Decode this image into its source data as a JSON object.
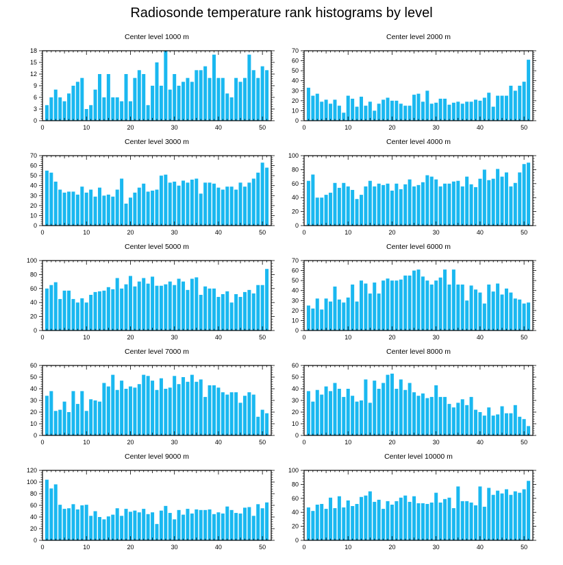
{
  "title": "Radiosonde temperature rank histograms by level",
  "colors": {
    "bar": "#1ab8f0",
    "axis": "#000000",
    "background": "#ffffff"
  },
  "chart_data": [
    {
      "type": "bar",
      "title": "Center level 1000 m",
      "xlim": [
        0,
        52
      ],
      "ylim": [
        0,
        18
      ],
      "xticks": [
        0,
        10,
        20,
        30,
        40,
        50
      ],
      "yticks": [
        0,
        3,
        6,
        9,
        12,
        15,
        18
      ],
      "x": [
        1,
        2,
        3,
        4,
        5,
        6,
        7,
        8,
        9,
        10,
        11,
        12,
        13,
        14,
        15,
        16,
        17,
        18,
        19,
        20,
        21,
        22,
        23,
        24,
        25,
        26,
        27,
        28,
        29,
        30,
        31,
        32,
        33,
        34,
        35,
        36,
        37,
        38,
        39,
        40,
        41,
        42,
        43,
        44,
        45,
        46,
        47,
        48,
        49,
        50,
        51
      ],
      "values": [
        4,
        6,
        8,
        6,
        5,
        7,
        9,
        10,
        11,
        3,
        4,
        8,
        12,
        6,
        12,
        6,
        6,
        5,
        12,
        5,
        11,
        13,
        12,
        4,
        9,
        15,
        9,
        18,
        8,
        12,
        9,
        10,
        11,
        10,
        13,
        13,
        14,
        11,
        17,
        11,
        11,
        7,
        6,
        11,
        10,
        11,
        17,
        13,
        11,
        14,
        13
      ]
    },
    {
      "type": "bar",
      "title": "Center level 2000 m",
      "xlim": [
        0,
        52
      ],
      "ylim": [
        0,
        70
      ],
      "xticks": [
        0,
        10,
        20,
        30,
        40,
        50
      ],
      "yticks": [
        0,
        10,
        20,
        30,
        40,
        50,
        60,
        70
      ],
      "x": [
        1,
        2,
        3,
        4,
        5,
        6,
        7,
        8,
        9,
        10,
        11,
        12,
        13,
        14,
        15,
        16,
        17,
        18,
        19,
        20,
        21,
        22,
        23,
        24,
        25,
        26,
        27,
        28,
        29,
        30,
        31,
        32,
        33,
        34,
        35,
        36,
        37,
        38,
        39,
        40,
        41,
        42,
        43,
        44,
        45,
        46,
        47,
        48,
        49,
        50,
        51
      ],
      "values": [
        33,
        25,
        27,
        19,
        21,
        17,
        21,
        15,
        8,
        25,
        22,
        14,
        24,
        15,
        19,
        10,
        17,
        21,
        23,
        20,
        20,
        17,
        15,
        15,
        26,
        27,
        19,
        30,
        17,
        18,
        22,
        22,
        16,
        18,
        19,
        17,
        19,
        19,
        21,
        20,
        23,
        28,
        14,
        25,
        25,
        25,
        35,
        30,
        35,
        39,
        61
      ]
    },
    {
      "type": "bar",
      "title": "Center level 3000 m",
      "xlim": [
        0,
        52
      ],
      "ylim": [
        0,
        70
      ],
      "xticks": [
        0,
        10,
        20,
        30,
        40,
        50
      ],
      "yticks": [
        0,
        10,
        20,
        30,
        40,
        50,
        60,
        70
      ],
      "x": [
        1,
        2,
        3,
        4,
        5,
        6,
        7,
        8,
        9,
        10,
        11,
        12,
        13,
        14,
        15,
        16,
        17,
        18,
        19,
        20,
        21,
        22,
        23,
        24,
        25,
        26,
        27,
        28,
        29,
        30,
        31,
        32,
        33,
        34,
        35,
        36,
        37,
        38,
        39,
        40,
        41,
        42,
        43,
        44,
        45,
        46,
        47,
        48,
        49,
        50,
        51
      ],
      "values": [
        55,
        53,
        44,
        36,
        33,
        34,
        34,
        31,
        39,
        33,
        36,
        29,
        38,
        30,
        31,
        29,
        36,
        47,
        22,
        28,
        33,
        38,
        42,
        34,
        35,
        36,
        50,
        51,
        43,
        44,
        40,
        45,
        43,
        46,
        47,
        32,
        43,
        43,
        42,
        38,
        36,
        39,
        39,
        36,
        43,
        39,
        43,
        47,
        53,
        63,
        58
      ]
    },
    {
      "type": "bar",
      "title": "Center level 4000 m",
      "xlim": [
        0,
        52
      ],
      "ylim": [
        0,
        100
      ],
      "xticks": [
        0,
        10,
        20,
        30,
        40,
        50
      ],
      "yticks": [
        0,
        20,
        40,
        60,
        80,
        100
      ],
      "x": [
        1,
        2,
        3,
        4,
        5,
        6,
        7,
        8,
        9,
        10,
        11,
        12,
        13,
        14,
        15,
        16,
        17,
        18,
        19,
        20,
        21,
        22,
        23,
        24,
        25,
        26,
        27,
        28,
        29,
        30,
        31,
        32,
        33,
        34,
        35,
        36,
        37,
        38,
        39,
        40,
        41,
        42,
        43,
        44,
        45,
        46,
        47,
        48,
        49,
        50,
        51
      ],
      "values": [
        64,
        73,
        40,
        40,
        44,
        47,
        61,
        54,
        61,
        56,
        51,
        38,
        44,
        56,
        64,
        56,
        60,
        58,
        60,
        50,
        60,
        52,
        59,
        66,
        56,
        58,
        62,
        72,
        70,
        66,
        56,
        60,
        60,
        63,
        64,
        56,
        70,
        59,
        55,
        67,
        80,
        65,
        67,
        81,
        70,
        76,
        56,
        61,
        76,
        88,
        90
      ]
    },
    {
      "type": "bar",
      "title": "Center level 5000 m",
      "xlim": [
        0,
        52
      ],
      "ylim": [
        0,
        100
      ],
      "xticks": [
        0,
        10,
        20,
        30,
        40,
        50
      ],
      "yticks": [
        0,
        20,
        40,
        60,
        80,
        100
      ],
      "x": [
        1,
        2,
        3,
        4,
        5,
        6,
        7,
        8,
        9,
        10,
        11,
        12,
        13,
        14,
        15,
        16,
        17,
        18,
        19,
        20,
        21,
        22,
        23,
        24,
        25,
        26,
        27,
        28,
        29,
        30,
        31,
        32,
        33,
        34,
        35,
        36,
        37,
        38,
        39,
        40,
        41,
        42,
        43,
        44,
        45,
        46,
        47,
        48,
        49,
        50,
        51
      ],
      "values": [
        60,
        65,
        69,
        45,
        57,
        57,
        45,
        40,
        46,
        40,
        51,
        55,
        56,
        57,
        62,
        59,
        75,
        60,
        66,
        78,
        63,
        70,
        75,
        67,
        77,
        64,
        64,
        66,
        70,
        65,
        74,
        70,
        58,
        74,
        76,
        51,
        63,
        60,
        60,
        48,
        52,
        56,
        40,
        52,
        48,
        55,
        58,
        53,
        65,
        65,
        88
      ]
    },
    {
      "type": "bar",
      "title": "Center level 6000 m",
      "xlim": [
        0,
        52
      ],
      "ylim": [
        0,
        70
      ],
      "xticks": [
        0,
        10,
        20,
        30,
        40,
        50
      ],
      "yticks": [
        0,
        10,
        20,
        30,
        40,
        50,
        60,
        70
      ],
      "x": [
        1,
        2,
        3,
        4,
        5,
        6,
        7,
        8,
        9,
        10,
        11,
        12,
        13,
        14,
        15,
        16,
        17,
        18,
        19,
        20,
        21,
        22,
        23,
        24,
        25,
        26,
        27,
        28,
        29,
        30,
        31,
        32,
        33,
        34,
        35,
        36,
        37,
        38,
        39,
        40,
        41,
        42,
        43,
        44,
        45,
        46,
        47,
        48,
        49,
        50,
        51
      ],
      "values": [
        25,
        22,
        32,
        21,
        32,
        29,
        44,
        31,
        28,
        33,
        46,
        29,
        50,
        47,
        37,
        48,
        37,
        50,
        52,
        50,
        50,
        51,
        55,
        55,
        60,
        61,
        54,
        50,
        46,
        50,
        53,
        61,
        46,
        61,
        46,
        46,
        30,
        45,
        41,
        38,
        27,
        46,
        39,
        47,
        36,
        42,
        38,
        32,
        31,
        27,
        28
      ]
    },
    {
      "type": "bar",
      "title": "Center level 7000 m",
      "xlim": [
        0,
        52
      ],
      "ylim": [
        0,
        60
      ],
      "xticks": [
        0,
        10,
        20,
        30,
        40,
        50
      ],
      "yticks": [
        0,
        10,
        20,
        30,
        40,
        50,
        60
      ],
      "x": [
        1,
        2,
        3,
        4,
        5,
        6,
        7,
        8,
        9,
        10,
        11,
        12,
        13,
        14,
        15,
        16,
        17,
        18,
        19,
        20,
        21,
        22,
        23,
        24,
        25,
        26,
        27,
        28,
        29,
        30,
        31,
        32,
        33,
        34,
        35,
        36,
        37,
        38,
        39,
        40,
        41,
        42,
        43,
        44,
        45,
        46,
        47,
        48,
        49,
        50,
        51
      ],
      "values": [
        34,
        38,
        21,
        22,
        29,
        20,
        38,
        27,
        38,
        21,
        31,
        30,
        29,
        45,
        42,
        52,
        39,
        47,
        40,
        42,
        41,
        44,
        52,
        51,
        47,
        39,
        49,
        40,
        41,
        51,
        44,
        50,
        46,
        52,
        46,
        48,
        33,
        43,
        43,
        41,
        37,
        35,
        37,
        37,
        28,
        34,
        37,
        35,
        16,
        22,
        19
      ]
    },
    {
      "type": "bar",
      "title": "Center level 8000 m",
      "xlim": [
        0,
        52
      ],
      "ylim": [
        0,
        60
      ],
      "xticks": [
        0,
        10,
        20,
        30,
        40,
        50
      ],
      "yticks": [
        0,
        10,
        20,
        30,
        40,
        50,
        60
      ],
      "x": [
        1,
        2,
        3,
        4,
        5,
        6,
        7,
        8,
        9,
        10,
        11,
        12,
        13,
        14,
        15,
        16,
        17,
        18,
        19,
        20,
        21,
        22,
        23,
        24,
        25,
        26,
        27,
        28,
        29,
        30,
        31,
        32,
        33,
        34,
        35,
        36,
        37,
        38,
        39,
        40,
        41,
        42,
        43,
        44,
        45,
        46,
        47,
        48,
        49,
        50,
        51
      ],
      "values": [
        38,
        29,
        39,
        35,
        42,
        38,
        45,
        40,
        33,
        40,
        34,
        29,
        30,
        48,
        28,
        47,
        40,
        45,
        52,
        53,
        40,
        48,
        39,
        45,
        37,
        34,
        36,
        32,
        33,
        43,
        33,
        33,
        27,
        24,
        28,
        31,
        26,
        33,
        22,
        20,
        17,
        24,
        17,
        18,
        25,
        19,
        19,
        26,
        16,
        14,
        8
      ]
    },
    {
      "type": "bar",
      "title": "Center level 9000 m",
      "xlim": [
        0,
        52
      ],
      "ylim": [
        0,
        120
      ],
      "xticks": [
        0,
        10,
        20,
        30,
        40,
        50
      ],
      "yticks": [
        0,
        20,
        40,
        60,
        80,
        100,
        120
      ],
      "x": [
        1,
        2,
        3,
        4,
        5,
        6,
        7,
        8,
        9,
        10,
        11,
        12,
        13,
        14,
        15,
        16,
        17,
        18,
        19,
        20,
        21,
        22,
        23,
        24,
        25,
        26,
        27,
        28,
        29,
        30,
        31,
        32,
        33,
        34,
        35,
        36,
        37,
        38,
        39,
        40,
        41,
        42,
        43,
        44,
        45,
        46,
        47,
        48,
        49,
        50,
        51
      ],
      "values": [
        104,
        89,
        96,
        61,
        54,
        55,
        62,
        53,
        60,
        61,
        42,
        50,
        40,
        36,
        41,
        44,
        55,
        42,
        54,
        49,
        51,
        48,
        54,
        45,
        48,
        28,
        51,
        59,
        47,
        36,
        52,
        44,
        54,
        46,
        53,
        52,
        52,
        53,
        45,
        48,
        46,
        58,
        52,
        47,
        46,
        56,
        57,
        42,
        62,
        55,
        65
      ]
    },
    {
      "type": "bar",
      "title": "Center level 10000 m",
      "xlim": [
        0,
        52
      ],
      "ylim": [
        0,
        100
      ],
      "xticks": [
        0,
        10,
        20,
        30,
        40,
        50
      ],
      "yticks": [
        0,
        20,
        40,
        60,
        80,
        100
      ],
      "x": [
        1,
        2,
        3,
        4,
        5,
        6,
        7,
        8,
        9,
        10,
        11,
        12,
        13,
        14,
        15,
        16,
        17,
        18,
        19,
        20,
        21,
        22,
        23,
        24,
        25,
        26,
        27,
        28,
        29,
        30,
        31,
        32,
        33,
        34,
        35,
        36,
        37,
        38,
        39,
        40,
        41,
        42,
        43,
        44,
        45,
        46,
        47,
        48,
        49,
        50,
        51
      ],
      "values": [
        47,
        42,
        51,
        52,
        45,
        61,
        46,
        63,
        47,
        57,
        49,
        52,
        62,
        64,
        70,
        55,
        58,
        45,
        56,
        51,
        56,
        61,
        64,
        55,
        63,
        53,
        53,
        52,
        54,
        68,
        54,
        59,
        61,
        46,
        77,
        56,
        56,
        54,
        50,
        77,
        48,
        75,
        65,
        71,
        67,
        73,
        65,
        70,
        68,
        73,
        85
      ]
    }
  ]
}
